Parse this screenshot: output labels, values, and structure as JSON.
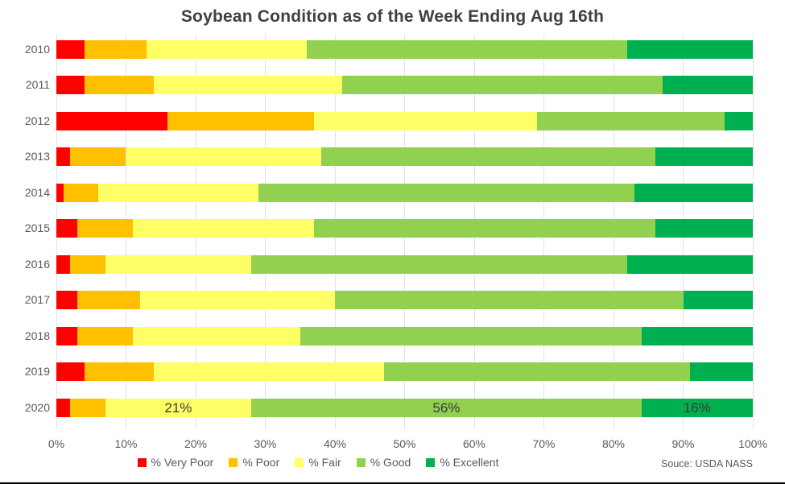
{
  "title": "Soybean Condition as of the Week Ending Aug 16th",
  "source_note": "Souce: USDA NASS",
  "colors": {
    "very_poor": "#FF0000",
    "poor": "#FFC000",
    "fair": "#FFFF66",
    "good": "#92D050",
    "excellent": "#00B050",
    "title_text": "#404040",
    "axis_text": "#595959",
    "gridline": "#E3E3E3",
    "data_label_text": "#3A3A3A"
  },
  "chart_data": {
    "type": "bar",
    "stacked": true,
    "orientation": "horizontal",
    "title": "Soybean Condition as of the Week Ending Aug 16th",
    "categories": [
      "2010",
      "2011",
      "2012",
      "2013",
      "2014",
      "2015",
      "2016",
      "2017",
      "2018",
      "2019",
      "2020"
    ],
    "series": [
      {
        "name": "% Very Poor",
        "color": "#FF0000",
        "values": [
          4,
          4,
          16,
          2,
          1,
          3,
          2,
          3,
          3,
          4,
          2
        ]
      },
      {
        "name": "% Poor",
        "color": "#FFC000",
        "values": [
          9,
          10,
          21,
          8,
          5,
          8,
          5,
          9,
          8,
          10,
          5
        ]
      },
      {
        "name": "% Fair",
        "color": "#FFFF66",
        "values": [
          23,
          27,
          32,
          28,
          23,
          26,
          21,
          28,
          24,
          33,
          21
        ]
      },
      {
        "name": "% Good",
        "color": "#92D050",
        "values": [
          46,
          46,
          27,
          48,
          54,
          49,
          54,
          50,
          49,
          44,
          56
        ]
      },
      {
        "name": "% Excellent",
        "color": "#00B050",
        "values": [
          18,
          13,
          4,
          14,
          17,
          14,
          18,
          10,
          16,
          9,
          16
        ]
      }
    ],
    "xlim": [
      0,
      100
    ],
    "x_tick_labels": [
      "0%",
      "10%",
      "20%",
      "30%",
      "40%",
      "50%",
      "60%",
      "70%",
      "80%",
      "90%",
      "100%"
    ],
    "grid": true,
    "legend_position": "bottom",
    "annotations": [
      {
        "category": "2020",
        "series": "% Fair",
        "text": "21%"
      },
      {
        "category": "2020",
        "series": "% Good",
        "text": "56%"
      },
      {
        "category": "2020",
        "series": "% Excellent",
        "text": "16%"
      }
    ]
  }
}
